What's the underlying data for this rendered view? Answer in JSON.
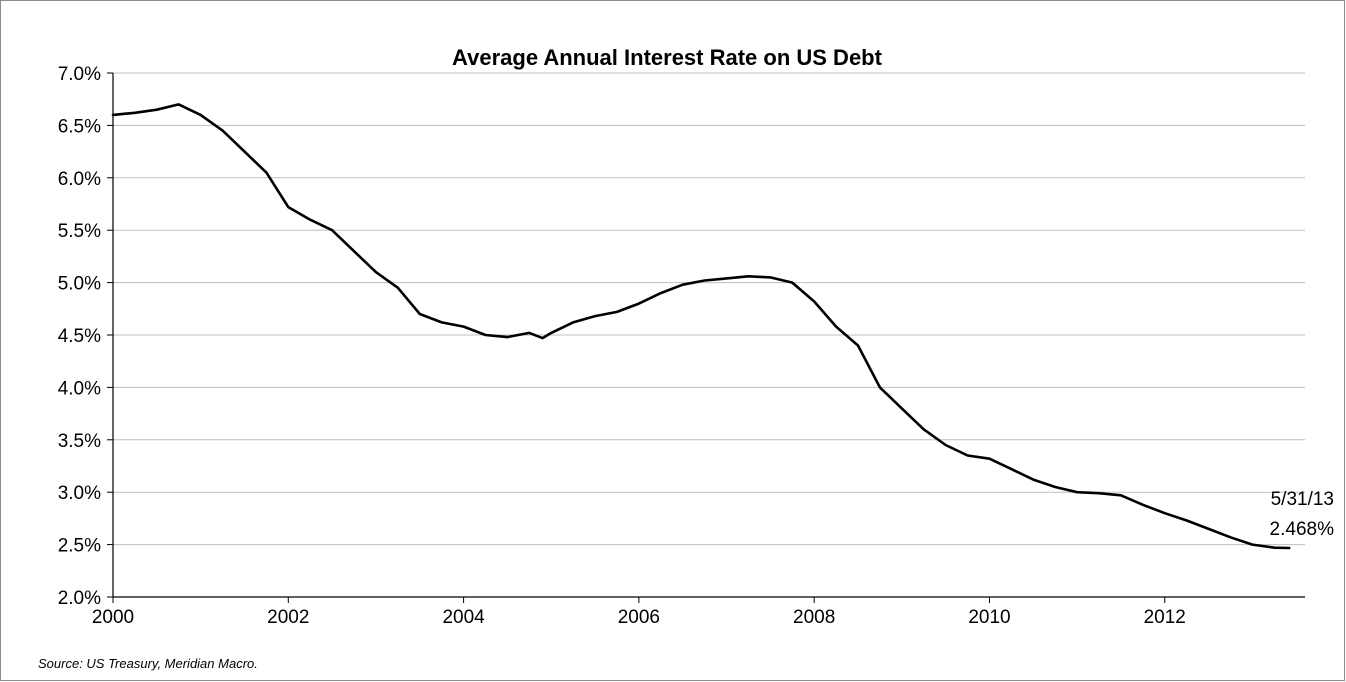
{
  "chart_data": {
    "type": "line",
    "title": "Average Annual Interest Rate on US Debt",
    "xlabel": "",
    "ylabel": "",
    "xlim": [
      2000,
      2013.6
    ],
    "ylim": [
      2.0,
      7.0
    ],
    "x_ticks": [
      {
        "value": 2000,
        "label": "2000"
      },
      {
        "value": 2002,
        "label": "2002"
      },
      {
        "value": 2004,
        "label": "2004"
      },
      {
        "value": 2006,
        "label": "2006"
      },
      {
        "value": 2008,
        "label": "2008"
      },
      {
        "value": 2010,
        "label": "2010"
      },
      {
        "value": 2012,
        "label": "2012"
      }
    ],
    "y_ticks": [
      {
        "value": 2.0,
        "label": "2.0%"
      },
      {
        "value": 2.5,
        "label": "2.5%"
      },
      {
        "value": 3.0,
        "label": "3.0%"
      },
      {
        "value": 3.5,
        "label": "3.5%"
      },
      {
        "value": 4.0,
        "label": "4.0%"
      },
      {
        "value": 4.5,
        "label": "4.5%"
      },
      {
        "value": 5.0,
        "label": "5.0%"
      },
      {
        "value": 5.5,
        "label": "5.5%"
      },
      {
        "value": 6.0,
        "label": "6.0%"
      },
      {
        "value": 6.5,
        "label": "6.5%"
      },
      {
        "value": 7.0,
        "label": "7.0%"
      }
    ],
    "grid": true,
    "legend": "none",
    "line_color": "#000000",
    "grid_color": "#bfbfbf",
    "series": [
      {
        "values": [
          [
            2000.0,
            6.6
          ],
          [
            2000.25,
            6.62
          ],
          [
            2000.5,
            6.65
          ],
          [
            2000.75,
            6.7
          ],
          [
            2001.0,
            6.6
          ],
          [
            2001.25,
            6.45
          ],
          [
            2001.5,
            6.25
          ],
          [
            2001.75,
            6.05
          ],
          [
            2002.0,
            5.72
          ],
          [
            2002.25,
            5.6
          ],
          [
            2002.5,
            5.5
          ],
          [
            2002.75,
            5.3
          ],
          [
            2003.0,
            5.1
          ],
          [
            2003.25,
            4.95
          ],
          [
            2003.5,
            4.7
          ],
          [
            2003.75,
            4.62
          ],
          [
            2004.0,
            4.58
          ],
          [
            2004.25,
            4.5
          ],
          [
            2004.5,
            4.48
          ],
          [
            2004.75,
            4.52
          ],
          [
            2004.9,
            4.47
          ],
          [
            2005.0,
            4.52
          ],
          [
            2005.25,
            4.62
          ],
          [
            2005.5,
            4.68
          ],
          [
            2005.75,
            4.72
          ],
          [
            2006.0,
            4.8
          ],
          [
            2006.25,
            4.9
          ],
          [
            2006.5,
            4.98
          ],
          [
            2006.75,
            5.02
          ],
          [
            2007.0,
            5.04
          ],
          [
            2007.25,
            5.06
          ],
          [
            2007.5,
            5.05
          ],
          [
            2007.75,
            5.0
          ],
          [
            2008.0,
            4.82
          ],
          [
            2008.25,
            4.58
          ],
          [
            2008.5,
            4.4
          ],
          [
            2008.75,
            4.0
          ],
          [
            2009.0,
            3.8
          ],
          [
            2009.25,
            3.6
          ],
          [
            2009.5,
            3.45
          ],
          [
            2009.75,
            3.35
          ],
          [
            2010.0,
            3.32
          ],
          [
            2010.25,
            3.22
          ],
          [
            2010.5,
            3.12
          ],
          [
            2010.75,
            3.05
          ],
          [
            2011.0,
            3.0
          ],
          [
            2011.25,
            2.99
          ],
          [
            2011.5,
            2.97
          ],
          [
            2011.75,
            2.88
          ],
          [
            2012.0,
            2.8
          ],
          [
            2012.25,
            2.73
          ],
          [
            2012.5,
            2.65
          ],
          [
            2012.75,
            2.57
          ],
          [
            2013.0,
            2.5
          ],
          [
            2013.25,
            2.47
          ],
          [
            2013.42,
            2.468
          ]
        ]
      }
    ],
    "annotation": {
      "date": "5/31/13",
      "value": "2.468%"
    },
    "source": "Source: US Treasury, Meridian Macro."
  }
}
